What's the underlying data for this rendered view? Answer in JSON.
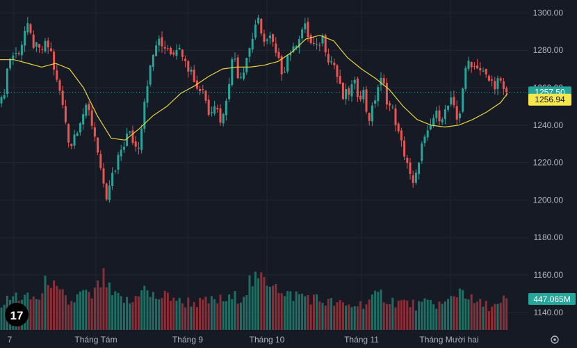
{
  "colors": {
    "background": "#161a25",
    "grid": "#232632",
    "up": "#26a69a",
    "down": "#ef5350",
    "volume_up": "#1e6e64",
    "volume_down": "#8a2e38",
    "ma": "#e6d53a",
    "axis_text": "#b2b5be",
    "price_badge": "#26a69a",
    "ma_badge": "#f6e84c"
  },
  "chart_data": {
    "type": "candlestick",
    "price_axis": {
      "min": 1130,
      "max": 1305,
      "ticks": [
        "1300.00",
        "1280.00",
        "1260.00",
        "1240.00",
        "1220.00",
        "1200.00",
        "1180.00",
        "1160.00",
        "1140.00"
      ]
    },
    "time_axis": {
      "labels": [
        "7",
        "Tháng Tám",
        "Tháng 9",
        "Tháng 10",
        "Tháng 11",
        "Tháng Mười hai"
      ]
    },
    "last_price": {
      "value": 1257.5,
      "label": "1257.50"
    },
    "moving_average": {
      "value": 1256.94,
      "label": "1256.94"
    },
    "last_volume_label": "447.065M",
    "volume_scale_max": 1000,
    "ma_anchors": [
      [
        0,
        1275
      ],
      [
        20,
        1275
      ],
      [
        40,
        1273
      ],
      [
        60,
        1271
      ],
      [
        80,
        1273
      ],
      [
        100,
        1270
      ],
      [
        120,
        1260
      ],
      [
        140,
        1245
      ],
      [
        160,
        1233
      ],
      [
        180,
        1232
      ],
      [
        200,
        1238
      ],
      [
        220,
        1245
      ],
      [
        240,
        1250
      ],
      [
        260,
        1257
      ],
      [
        280,
        1261
      ],
      [
        300,
        1266
      ],
      [
        320,
        1270
      ],
      [
        340,
        1271
      ],
      [
        360,
        1271
      ],
      [
        380,
        1272
      ],
      [
        400,
        1274
      ],
      [
        420,
        1279
      ],
      [
        440,
        1286
      ],
      [
        460,
        1288
      ],
      [
        480,
        1285
      ],
      [
        500,
        1276
      ],
      [
        520,
        1270
      ],
      [
        540,
        1265
      ],
      [
        560,
        1259
      ],
      [
        580,
        1250
      ],
      [
        600,
        1243
      ],
      [
        620,
        1240
      ],
      [
        640,
        1239
      ],
      [
        660,
        1240
      ],
      [
        680,
        1243
      ],
      [
        700,
        1247
      ],
      [
        720,
        1252
      ],
      [
        730,
        1257
      ]
    ],
    "price_anchors": [
      [
        4,
        1252
      ],
      [
        8,
        1265
      ],
      [
        12,
        1273
      ],
      [
        16,
        1278
      ],
      [
        22,
        1277
      ],
      [
        30,
        1282
      ],
      [
        34,
        1288
      ],
      [
        38,
        1293
      ],
      [
        44,
        1287
      ],
      [
        50,
        1282
      ],
      [
        56,
        1279
      ],
      [
        62,
        1281
      ],
      [
        68,
        1283
      ],
      [
        74,
        1278
      ],
      [
        78,
        1270
      ],
      [
        82,
        1262
      ],
      [
        86,
        1258
      ],
      [
        90,
        1250
      ],
      [
        94,
        1243
      ],
      [
        98,
        1234
      ],
      [
        102,
        1229
      ],
      [
        106,
        1234
      ],
      [
        110,
        1238
      ],
      [
        114,
        1242
      ],
      [
        118,
        1246
      ],
      [
        122,
        1247
      ],
      [
        126,
        1248
      ],
      [
        130,
        1245
      ],
      [
        134,
        1238
      ],
      [
        138,
        1232
      ],
      [
        142,
        1225
      ],
      [
        146,
        1213
      ],
      [
        150,
        1203
      ],
      [
        154,
        1196
      ],
      [
        158,
        1210
      ],
      [
        162,
        1213
      ],
      [
        166,
        1215
      ],
      [
        170,
        1221
      ],
      [
        174,
        1227
      ],
      [
        178,
        1230
      ],
      [
        182,
        1234
      ],
      [
        186,
        1235
      ],
      [
        190,
        1233
      ],
      [
        194,
        1229
      ],
      [
        198,
        1227
      ],
      [
        202,
        1236
      ],
      [
        206,
        1248
      ],
      [
        210,
        1261
      ],
      [
        214,
        1266
      ],
      [
        218,
        1273
      ],
      [
        222,
        1280
      ],
      [
        226,
        1285
      ],
      [
        230,
        1283
      ],
      [
        234,
        1282
      ],
      [
        238,
        1283
      ],
      [
        242,
        1282
      ],
      [
        246,
        1280
      ],
      [
        250,
        1280
      ],
      [
        254,
        1283
      ],
      [
        258,
        1279
      ],
      [
        262,
        1280
      ],
      [
        266,
        1278
      ],
      [
        270,
        1272
      ],
      [
        274,
        1270
      ],
      [
        278,
        1266
      ],
      [
        282,
        1262
      ],
      [
        286,
        1257
      ],
      [
        290,
        1263
      ],
      [
        294,
        1256
      ],
      [
        298,
        1250
      ],
      [
        302,
        1246
      ],
      [
        306,
        1253
      ],
      [
        310,
        1252
      ],
      [
        314,
        1246
      ],
      [
        318,
        1243
      ],
      [
        322,
        1245
      ],
      [
        326,
        1257
      ],
      [
        330,
        1266
      ],
      [
        334,
        1274
      ],
      [
        338,
        1276
      ],
      [
        342,
        1268
      ],
      [
        346,
        1267
      ],
      [
        350,
        1270
      ],
      [
        354,
        1276
      ],
      [
        358,
        1280
      ],
      [
        362,
        1285
      ],
      [
        366,
        1292
      ],
      [
        370,
        1298
      ],
      [
        374,
        1289
      ],
      [
        378,
        1284
      ],
      [
        382,
        1290
      ],
      [
        386,
        1282
      ],
      [
        390,
        1289
      ],
      [
        394,
        1279
      ],
      [
        398,
        1276
      ],
      [
        402,
        1272
      ],
      [
        406,
        1269
      ],
      [
        410,
        1272
      ],
      [
        414,
        1278
      ],
      [
        418,
        1280
      ],
      [
        422,
        1279
      ],
      [
        426,
        1285
      ],
      [
        430,
        1288
      ],
      [
        434,
        1291
      ],
      [
        438,
        1292
      ],
      [
        442,
        1290
      ],
      [
        446,
        1283
      ],
      [
        450,
        1284
      ],
      [
        454,
        1278
      ],
      [
        458,
        1283
      ],
      [
        462,
        1287
      ],
      [
        466,
        1287
      ],
      [
        470,
        1278
      ],
      [
        474,
        1276
      ],
      [
        478,
        1273
      ],
      [
        482,
        1272
      ],
      [
        486,
        1264
      ],
      [
        490,
        1258
      ],
      [
        494,
        1254
      ],
      [
        498,
        1256
      ],
      [
        502,
        1258
      ],
      [
        506,
        1260
      ],
      [
        510,
        1261
      ],
      [
        514,
        1258
      ],
      [
        518,
        1257
      ],
      [
        522,
        1259
      ],
      [
        526,
        1250
      ],
      [
        530,
        1244
      ],
      [
        534,
        1245
      ],
      [
        538,
        1252
      ],
      [
        542,
        1259
      ],
      [
        546,
        1263
      ],
      [
        550,
        1263
      ],
      [
        554,
        1258
      ],
      [
        558,
        1252
      ],
      [
        562,
        1249
      ],
      [
        566,
        1247
      ],
      [
        570,
        1241
      ],
      [
        574,
        1233
      ],
      [
        578,
        1229
      ],
      [
        582,
        1225
      ],
      [
        586,
        1220
      ],
      [
        590,
        1212
      ],
      [
        594,
        1207
      ],
      [
        598,
        1211
      ],
      [
        602,
        1222
      ],
      [
        606,
        1228
      ],
      [
        610,
        1231
      ],
      [
        614,
        1233
      ],
      [
        618,
        1237
      ],
      [
        622,
        1244
      ],
      [
        626,
        1244
      ],
      [
        630,
        1246
      ],
      [
        634,
        1245
      ],
      [
        638,
        1247
      ],
      [
        642,
        1247
      ],
      [
        646,
        1252
      ],
      [
        650,
        1252
      ],
      [
        654,
        1246
      ],
      [
        658,
        1242
      ],
      [
        662,
        1249
      ],
      [
        666,
        1262
      ],
      [
        670,
        1268
      ],
      [
        674,
        1274
      ],
      [
        678,
        1274
      ],
      [
        682,
        1271
      ],
      [
        686,
        1273
      ],
      [
        690,
        1270
      ],
      [
        694,
        1268
      ],
      [
        698,
        1266
      ],
      [
        702,
        1264
      ],
      [
        706,
        1263
      ],
      [
        710,
        1262
      ],
      [
        714,
        1263
      ],
      [
        718,
        1264
      ],
      [
        722,
        1259
      ],
      [
        726,
        1256
      ],
      [
        730,
        1257
      ]
    ],
    "volume_anchors": [
      [
        0,
        320
      ],
      [
        12,
        360
      ],
      [
        22,
        420
      ],
      [
        40,
        380
      ],
      [
        60,
        400
      ],
      [
        70,
        700
      ],
      [
        80,
        460
      ],
      [
        90,
        420
      ],
      [
        100,
        320
      ],
      [
        120,
        460
      ],
      [
        130,
        380
      ],
      [
        150,
        640
      ],
      [
        160,
        420
      ],
      [
        180,
        360
      ],
      [
        190,
        320
      ],
      [
        204,
        560
      ],
      [
        214,
        420
      ],
      [
        230,
        400
      ],
      [
        250,
        420
      ],
      [
        260,
        320
      ],
      [
        270,
        350
      ],
      [
        290,
        330
      ],
      [
        310,
        360
      ],
      [
        330,
        370
      ],
      [
        350,
        440
      ],
      [
        360,
        600
      ],
      [
        370,
        580
      ],
      [
        380,
        640
      ],
      [
        390,
        600
      ],
      [
        396,
        660
      ],
      [
        406,
        400
      ],
      [
        420,
        430
      ],
      [
        440,
        420
      ],
      [
        460,
        360
      ],
      [
        480,
        330
      ],
      [
        500,
        290
      ],
      [
        520,
        320
      ],
      [
        530,
        350
      ],
      [
        550,
        440
      ],
      [
        560,
        360
      ],
      [
        580,
        340
      ],
      [
        600,
        300
      ],
      [
        620,
        330
      ],
      [
        640,
        310
      ],
      [
        665,
        520
      ],
      [
        680,
        340
      ],
      [
        700,
        300
      ],
      [
        720,
        290
      ],
      [
        726,
        390
      ],
      [
        732,
        280
      ]
    ]
  }
}
